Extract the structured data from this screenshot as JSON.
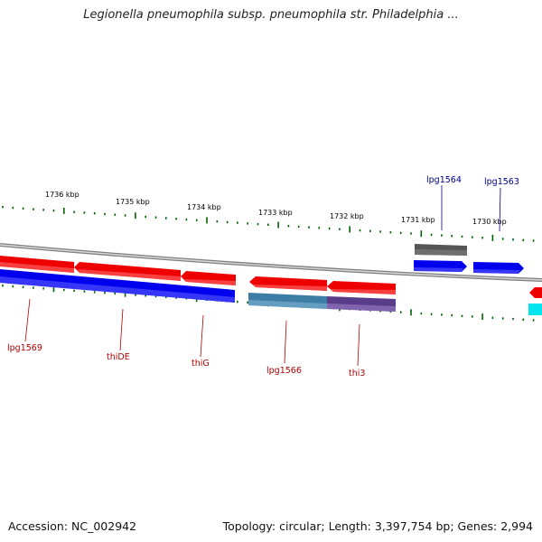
{
  "title": "Legionella pneumophila subsp. pneumophila str. Philadelphia ...",
  "footer": {
    "accession": "Accession: NC_002942",
    "summary": "Topology: circular; Length: 3,397,754 bp; Genes: 2,994"
  },
  "colors": {
    "forward_gene": "#0000ee",
    "reverse_gene": "#ee0000",
    "rna_gene": "#555555",
    "teal_gene": "#3d7ea6",
    "purple_gene": "#5a3d8a",
    "cyan_gene": "#00e5ee",
    "tick": "#006400",
    "backbone": "#888888",
    "top_label": "#00008b",
    "bottom_label": "#b00000"
  },
  "ruler": {
    "labels": [
      "1736 kbp",
      "1735 kbp",
      "1734 kbp",
      "1733 kbp",
      "1732 kbp",
      "1731 kbp",
      "1730 kbp"
    ]
  },
  "gene_labels": {
    "top": [
      "lpg1564",
      "lpg1563"
    ],
    "bottom": [
      "lpg1569",
      "thiDE",
      "thiG",
      "lpg1566",
      "thi3"
    ]
  }
}
